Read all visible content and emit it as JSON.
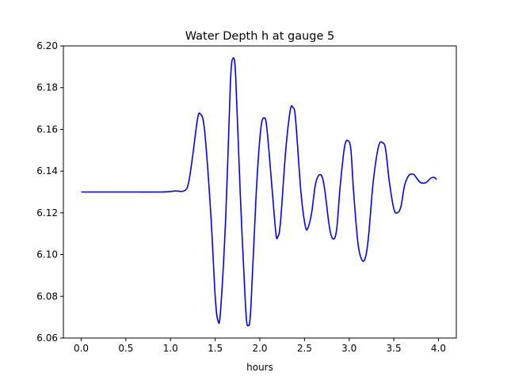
{
  "chart_data": {
    "type": "line",
    "title": "Water Depth h at gauge 5",
    "xlabel": "hours",
    "ylabel": "",
    "xlim": [
      -0.2,
      4.2
    ],
    "ylim": [
      6.06,
      6.2
    ],
    "grid": false,
    "x_ticks": [
      0.0,
      0.5,
      1.0,
      1.5,
      2.0,
      2.5,
      3.0,
      3.5,
      4.0
    ],
    "x_tick_labels": [
      "0.0",
      "0.5",
      "1.0",
      "1.5",
      "2.0",
      "2.5",
      "3.0",
      "3.5",
      "4.0"
    ],
    "y_ticks": [
      6.06,
      6.08,
      6.1,
      6.12,
      6.14,
      6.16,
      6.18,
      6.2
    ],
    "y_tick_labels": [
      "6.06",
      "6.08",
      "6.10",
      "6.12",
      "6.14",
      "6.16",
      "6.18",
      "6.20"
    ],
    "series": [
      {
        "color": "#0000ff",
        "x": [
          0.0,
          0.3,
          0.6,
          0.9,
          1.0,
          1.05,
          1.15,
          1.2,
          1.25,
          1.3,
          1.33,
          1.38,
          1.45,
          1.5,
          1.53,
          1.56,
          1.62,
          1.67,
          1.7,
          1.73,
          1.78,
          1.84,
          1.87,
          1.9,
          1.96,
          2.01,
          2.05,
          2.08,
          2.14,
          2.18,
          2.2,
          2.23,
          2.29,
          2.34,
          2.37,
          2.4,
          2.46,
          2.51,
          2.54,
          2.58,
          2.62,
          2.66,
          2.7,
          2.73,
          2.78,
          2.82,
          2.86,
          2.9,
          2.95,
          2.99,
          3.02,
          3.05,
          3.1,
          3.15,
          3.19,
          3.22,
          3.27,
          3.33,
          3.38,
          3.41,
          3.45,
          3.5,
          3.54,
          3.58,
          3.62,
          3.67,
          3.72,
          3.75,
          3.8,
          3.86,
          3.91,
          3.95,
          3.98
        ],
        "y": [
          6.13,
          6.13,
          6.13,
          6.13,
          6.1302,
          6.1305,
          6.1305,
          6.134,
          6.148,
          6.1645,
          6.1675,
          6.16,
          6.12,
          6.08,
          6.0685,
          6.073,
          6.12,
          6.182,
          6.194,
          6.185,
          6.13,
          6.075,
          6.066,
          6.075,
          6.13,
          6.16,
          6.1655,
          6.16,
          6.13,
          6.11,
          6.1085,
          6.115,
          6.15,
          6.169,
          6.1705,
          6.165,
          6.13,
          6.1135,
          6.113,
          6.12,
          6.133,
          6.138,
          6.137,
          6.13,
          6.113,
          6.1075,
          6.112,
          6.133,
          6.152,
          6.1545,
          6.15,
          6.13,
          6.105,
          6.097,
          6.1,
          6.11,
          6.135,
          6.152,
          6.1535,
          6.15,
          6.135,
          6.122,
          6.12,
          6.123,
          6.133,
          6.138,
          6.1385,
          6.137,
          6.1345,
          6.1345,
          6.1365,
          6.137,
          6.136
        ]
      }
    ]
  }
}
